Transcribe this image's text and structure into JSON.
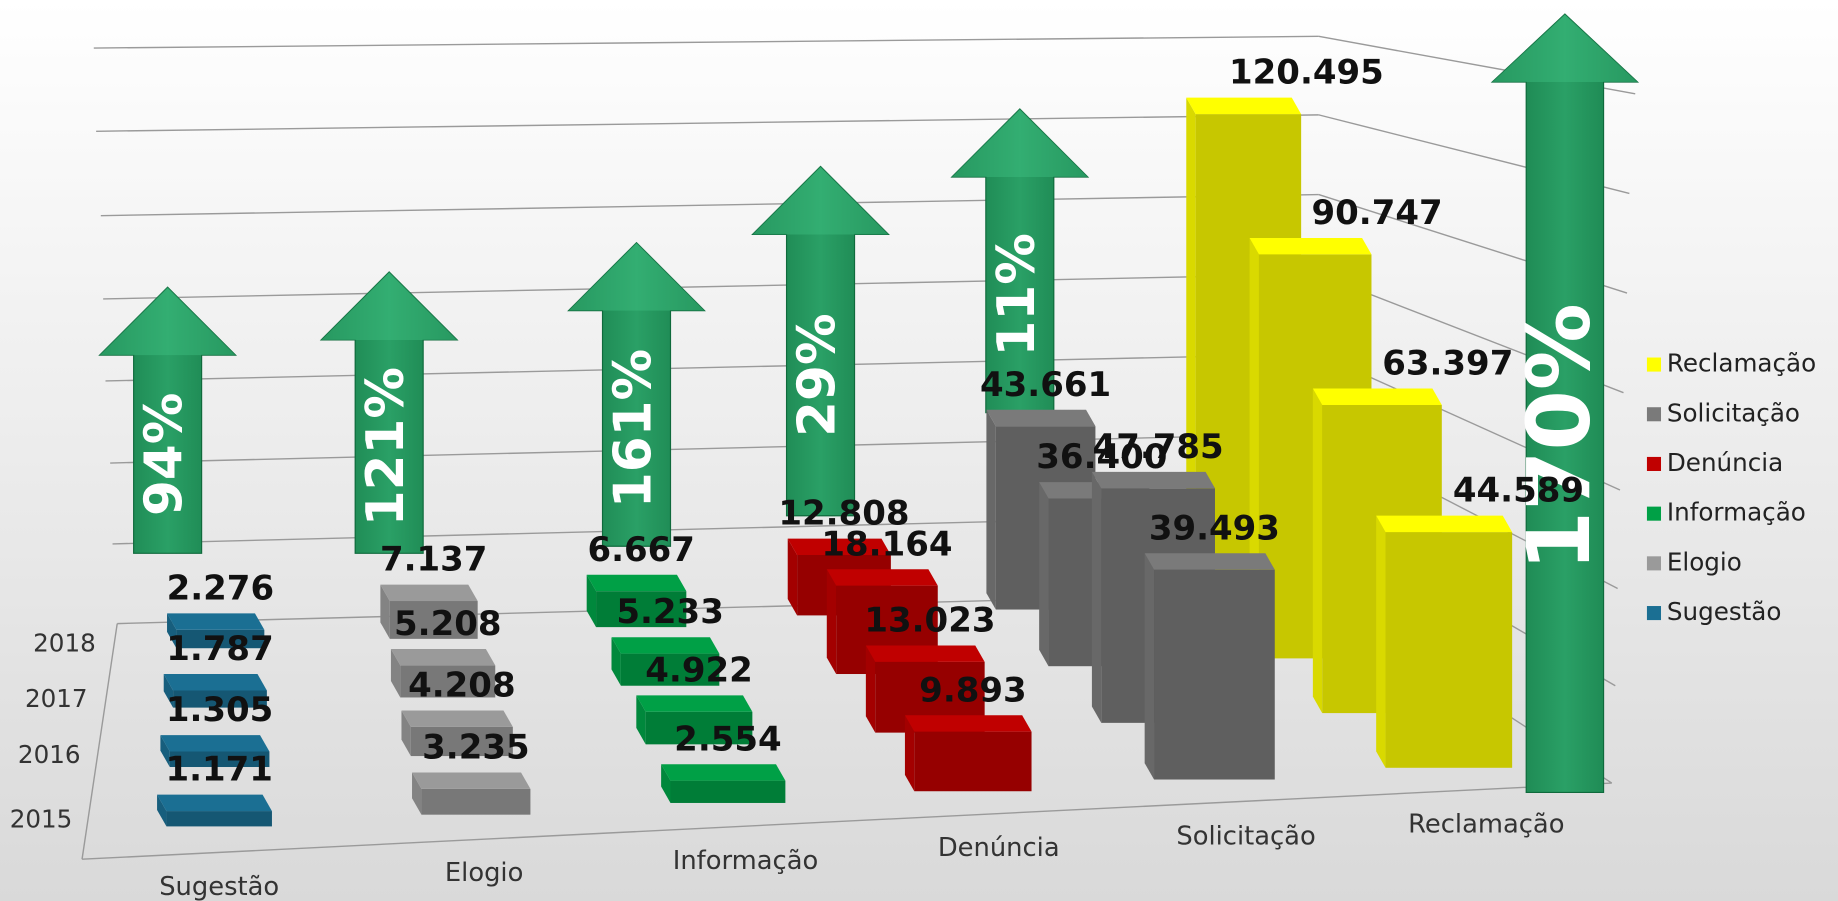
{
  "chart_data": {
    "type": "bar3d",
    "categories": [
      "Sugestão",
      "Elogio",
      "Informação",
      "Denúncia",
      "Solicitação",
      "Reclamação"
    ],
    "colors": [
      "#1b6f93",
      "#9a9a9a",
      "#00a046",
      "#c00000",
      "#7a7a7a",
      "#ffff00"
    ],
    "series": [
      {
        "name": "2015",
        "values": [
          1171,
          3235,
          2554,
          9893,
          39493,
          44589
        ],
        "value_labels": [
          "1.171",
          "3.235",
          "2.554",
          "9.893",
          "39.493",
          "44.589"
        ]
      },
      {
        "name": "2016",
        "values": [
          1305,
          4208,
          4922,
          13023,
          47785,
          63397
        ],
        "value_labels": [
          "1.305",
          "4.208",
          "4.922",
          "13.023",
          "47.785",
          "63.397"
        ]
      },
      {
        "name": "2017",
        "values": [
          1787,
          5208,
          5233,
          18164,
          36400,
          90747
        ],
        "value_labels": [
          "1.787",
          "5.208",
          "5.233",
          "18.164",
          "36.400",
          "90.747"
        ]
      },
      {
        "name": "2018",
        "values": [
          2276,
          7137,
          6667,
          12808,
          43661,
          120495
        ],
        "value_labels": [
          "2.276",
          "7.137",
          "6.667",
          "12.808",
          "43.661",
          "120.495"
        ]
      }
    ],
    "growth": [
      94,
      121,
      161,
      29,
      11,
      170
    ],
    "growth_labels": [
      "94%",
      "121%",
      "161%",
      "29%",
      "11%",
      "170%"
    ],
    "legend": "right"
  }
}
